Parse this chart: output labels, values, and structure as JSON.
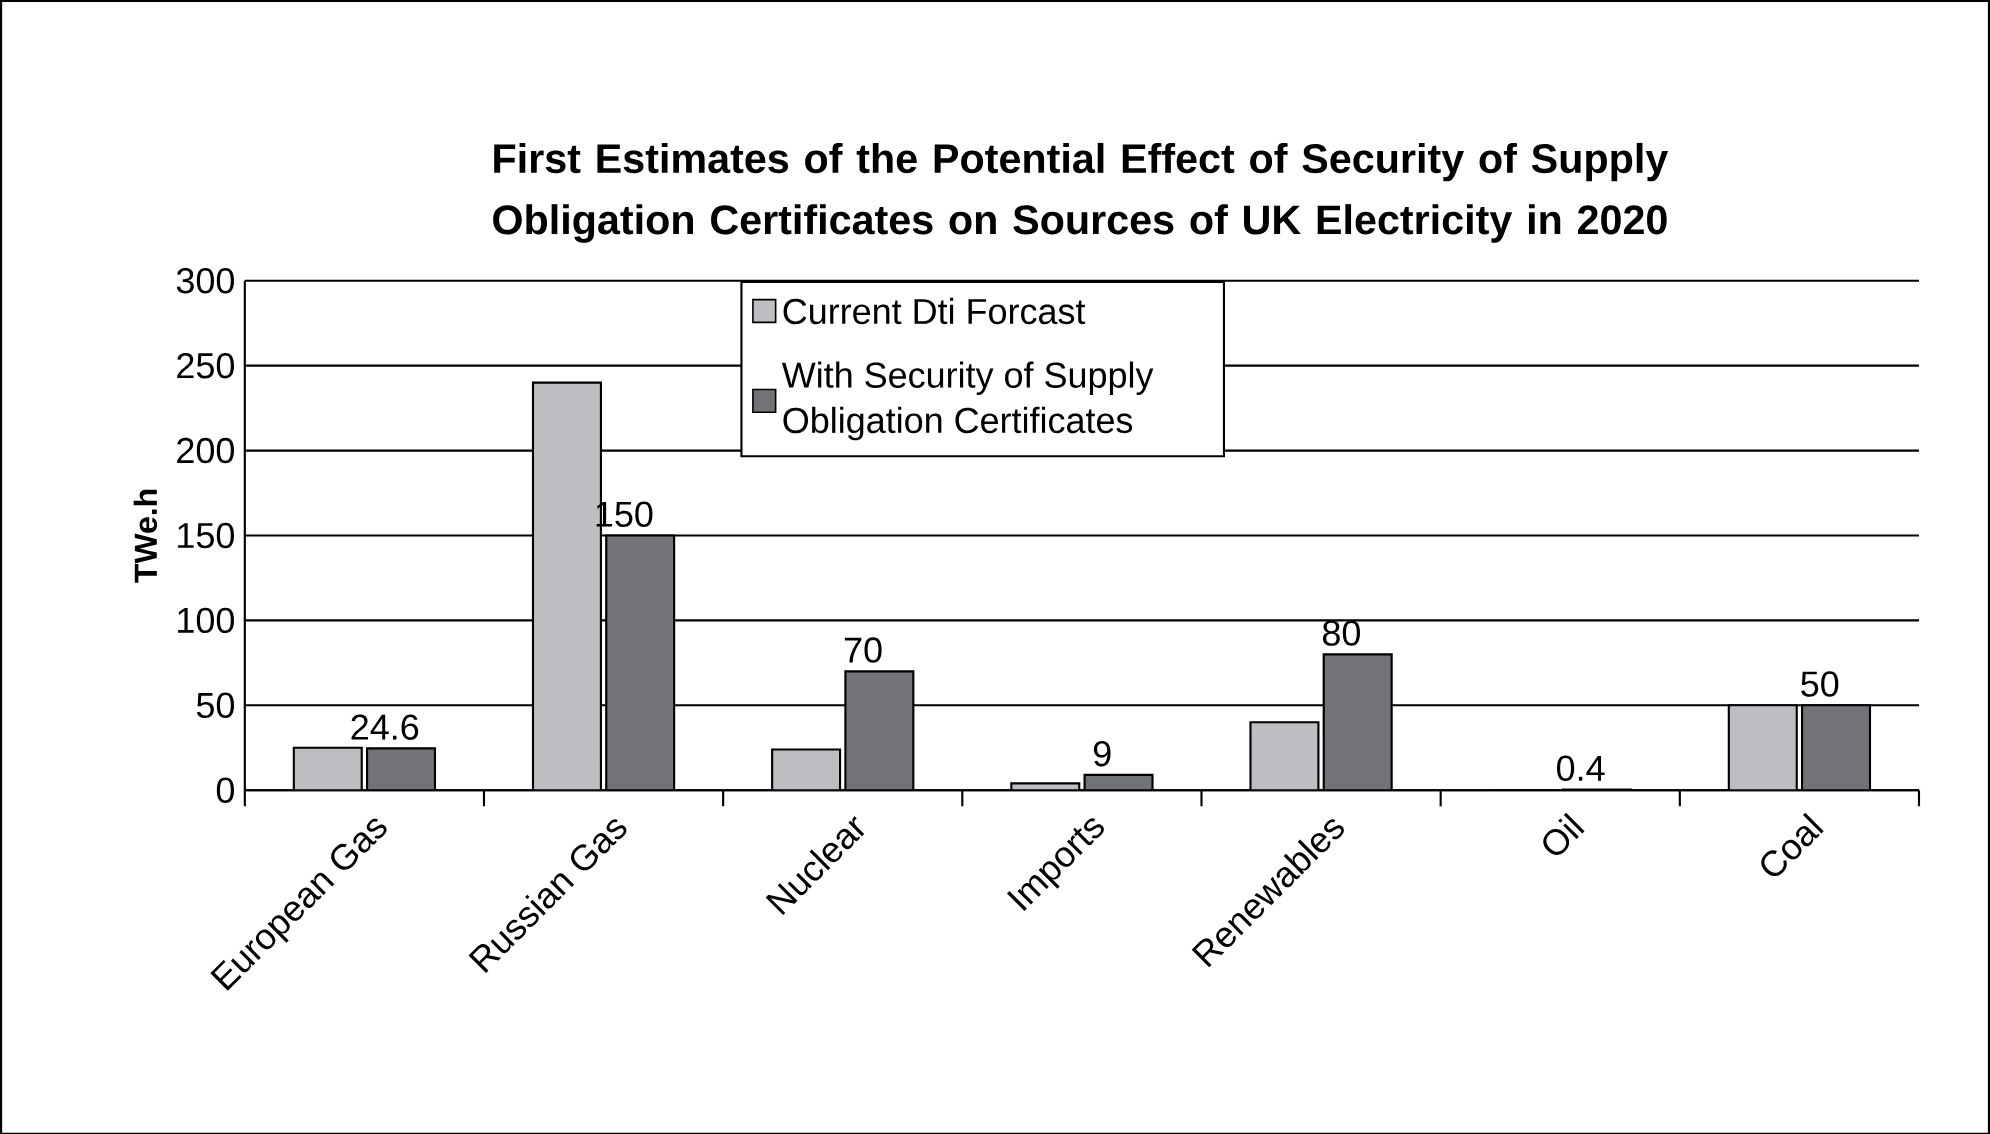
{
  "chart_data": {
    "type": "bar",
    "title": "First Estimates of the Potential Effect of Security of Supply Obligation Certificates on Sources of UK Electricity in 2020",
    "ylabel": "TWe.h",
    "categories": [
      "European Gas",
      "Russian Gas",
      "Nuclear",
      "Imports",
      "Renewables",
      "Oil",
      "Coal"
    ],
    "series": [
      {
        "name": "Current Dti Forcast",
        "color": "#bcbec1",
        "values": [
          25,
          240,
          24,
          4,
          40,
          0,
          50
        ]
      },
      {
        "name": "With Security of Supply Obligation Certificates",
        "color": "#727377",
        "values": [
          24.6,
          150,
          70,
          9,
          80,
          0.4,
          50
        ],
        "value_labels": [
          "24.6",
          "150",
          "70",
          "9",
          "80",
          "0.4",
          "50"
        ]
      }
    ],
    "ylim": [
      0,
      300
    ],
    "yticks": [
      0,
      50,
      100,
      150,
      200,
      250,
      300
    ],
    "grid": "y",
    "legend": "top"
  }
}
